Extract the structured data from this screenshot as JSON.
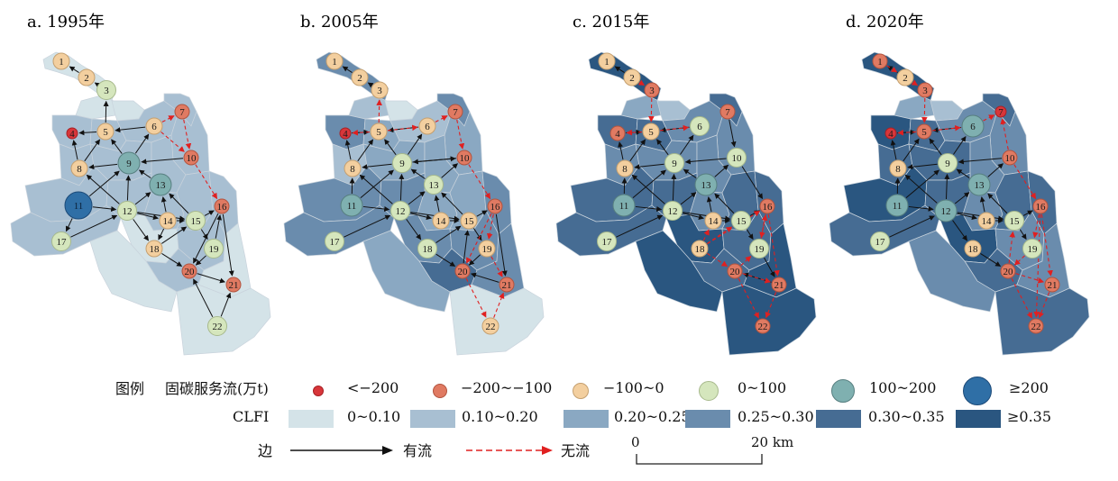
{
  "panels": [
    {
      "title": "a. 1995年",
      "node_classes": [
        2,
        2,
        3,
        0,
        2,
        2,
        1,
        2,
        4,
        1,
        5,
        3,
        4,
        2,
        3,
        1,
        3,
        2,
        3,
        1,
        1,
        3
      ],
      "regions": [
        0,
        0,
        0,
        1,
        1,
        1,
        1,
        1,
        1,
        1,
        1,
        1,
        1,
        1,
        1,
        1,
        1,
        0,
        1,
        1,
        0,
        0,
        0
      ]
    },
    {
      "title": "b. 2005年",
      "node_classes": [
        2,
        2,
        2,
        0,
        2,
        2,
        1,
        2,
        3,
        1,
        4,
        3,
        3,
        2,
        2,
        1,
        3,
        3,
        2,
        1,
        1,
        2
      ],
      "regions": [
        3,
        1,
        0,
        3,
        2,
        1,
        3,
        1,
        2,
        2,
        2,
        3,
        3,
        2,
        2,
        3,
        3,
        3,
        3,
        4,
        3,
        2,
        0
      ]
    },
    {
      "title": "c. 2015年",
      "node_classes": [
        2,
        2,
        1,
        1,
        2,
        3,
        1,
        2,
        3,
        3,
        4,
        3,
        4,
        2,
        3,
        1,
        3,
        2,
        3,
        1,
        1,
        1
      ],
      "regions": [
        5,
        2,
        1,
        4,
        4,
        3,
        4,
        3,
        3,
        3,
        3,
        4,
        4,
        3,
        4,
        4,
        4,
        5,
        4,
        4,
        5,
        5,
        5
      ]
    },
    {
      "title": "d. 2020年",
      "node_classes": [
        1,
        2,
        1,
        0,
        1,
        4,
        0,
        2,
        3,
        1,
        4,
        4,
        4,
        2,
        3,
        1,
        3,
        2,
        3,
        1,
        1,
        1
      ],
      "regions": [
        5,
        2,
        1,
        5,
        4,
        3,
        4,
        4,
        4,
        3,
        3,
        5,
        4,
        3,
        4,
        4,
        4,
        5,
        3,
        4,
        3,
        3,
        4
      ]
    }
  ],
  "legend": {
    "title": "图例",
    "flow_label": "固碳服务流(万t)",
    "flow_classes": [
      "<−200",
      "−200~−100",
      "−100~0",
      "0~100",
      "100~200",
      "≥200"
    ],
    "clfi_label": "CLFI",
    "clfi_classes": [
      "0~0.10",
      "0.10~0.20",
      "0.20~0.25",
      "0.25~0.30",
      "0.30~0.35",
      "≥0.35"
    ],
    "edge_label": "边",
    "edge_with_flow": "有流",
    "edge_no_flow": "无流",
    "scale_zero": "0",
    "scale_end": "20 km"
  },
  "colors": {
    "node_fill": [
      "#d8363a",
      "#e07a62",
      "#f3cf9f",
      "#d5e6bd",
      "#7fb0b0",
      "#2f6fa6"
    ],
    "node_stroke": [
      "#a82024",
      "#b2543f",
      "#c5a070",
      "#a7b98c",
      "#577f80",
      "#1c4a78"
    ],
    "clfi_fill": [
      "#d4e3e8",
      "#a8bfd2",
      "#8aa8c2",
      "#6a8cad",
      "#466c93",
      "#2a5680"
    ],
    "edge_flow": "#111111",
    "edge_noflow": "#e02020"
  }
}
